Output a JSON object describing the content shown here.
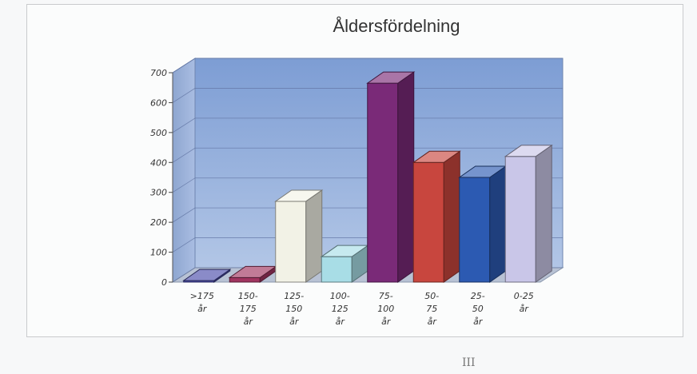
{
  "page": {
    "page_number": "III"
  },
  "chart_data": {
    "type": "bar",
    "title": "Åldersfördelning",
    "categories": [
      [
        ">175",
        "år"
      ],
      [
        "150-",
        "175",
        "år"
      ],
      [
        "125-",
        "150",
        "år"
      ],
      [
        "100-",
        "125",
        "år"
      ],
      [
        "75-",
        "100",
        "år"
      ],
      [
        "50-",
        "75",
        "år"
      ],
      [
        "25-",
        "50",
        "år"
      ],
      [
        "0-25",
        "år"
      ]
    ],
    "values": [
      5,
      15,
      270,
      85,
      665,
      400,
      350,
      420
    ],
    "colors": [
      "#4b4dab",
      "#a0345f",
      "#f2f2e6",
      "#a8dde6",
      "#7a2a78",
      "#c8463e",
      "#2c5ab2",
      "#c9c6e8"
    ],
    "y_ticks": [
      "0",
      "100",
      "200",
      "300",
      "400",
      "500",
      "600",
      "700"
    ],
    "ylim": [
      0,
      700
    ],
    "grid": true,
    "legend": "none",
    "style": "3d-column"
  }
}
